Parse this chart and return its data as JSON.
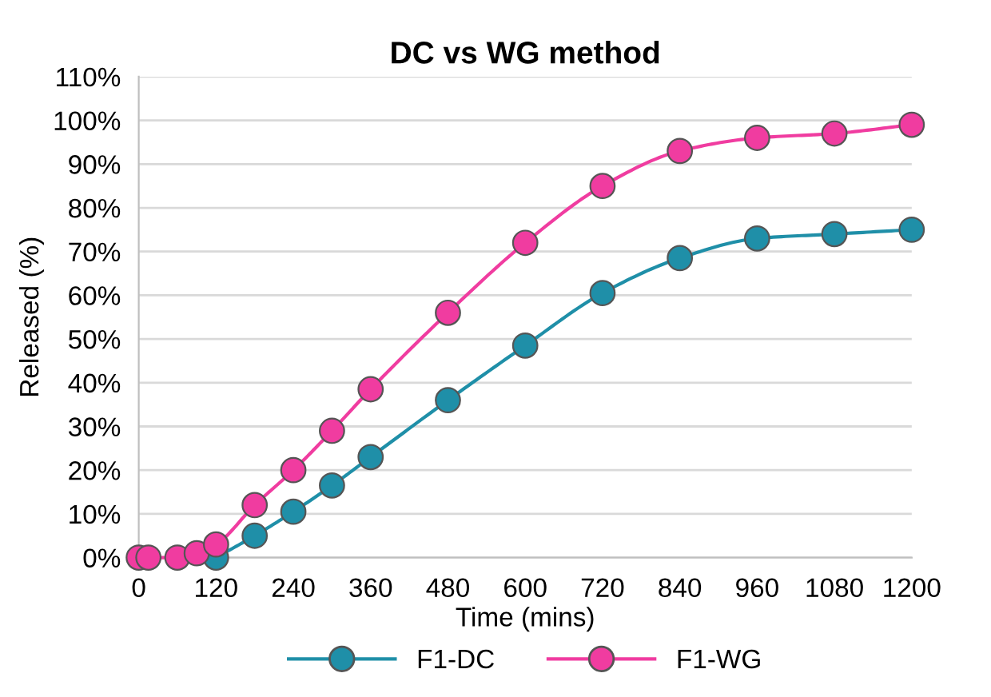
{
  "chart_data": {
    "type": "line",
    "title": "DC vs WG method",
    "xlabel": "Time (mins)",
    "ylabel": "Released (%)",
    "xlim": [
      0,
      1200
    ],
    "xticks": [
      0,
      120,
      240,
      360,
      480,
      600,
      720,
      840,
      960,
      1080,
      1200
    ],
    "ylim": [
      0,
      110
    ],
    "yticks": [
      {
        "value": 0,
        "label": "0%"
      },
      {
        "value": 10,
        "label": "10%"
      },
      {
        "value": 20,
        "label": "20%"
      },
      {
        "value": 30,
        "label": "30%"
      },
      {
        "value": 40,
        "label": "40%"
      },
      {
        "value": 50,
        "label": "50%"
      },
      {
        "value": 60,
        "label": "60%"
      },
      {
        "value": 70,
        "label": "70%"
      },
      {
        "value": 80,
        "label": "80%"
      },
      {
        "value": 90,
        "label": "90%"
      },
      {
        "value": 100,
        "label": "100%"
      },
      {
        "value": 110,
        "label": "110%"
      }
    ],
    "grid": "y",
    "legend": "bottom",
    "marker": "circle",
    "line_style": "solid",
    "series": [
      {
        "name": "F1-DC",
        "color": "#1f8fa8",
        "x": [
          120,
          180,
          240,
          300,
          360,
          480,
          600,
          720,
          840,
          960,
          1080,
          1200
        ],
        "values": [
          0,
          5,
          10.5,
          16.5,
          23,
          36,
          48.5,
          60.5,
          68.5,
          73,
          74,
          75
        ]
      },
      {
        "name": "F1-WG",
        "color": "#f03ca0",
        "x": [
          0,
          15,
          60,
          90,
          120,
          180,
          240,
          300,
          360,
          480,
          600,
          720,
          840,
          960,
          1080,
          1200
        ],
        "values": [
          0,
          0,
          0,
          1,
          3,
          12,
          20,
          29,
          38.5,
          56,
          72,
          85,
          93,
          96,
          97,
          99
        ]
      }
    ]
  }
}
